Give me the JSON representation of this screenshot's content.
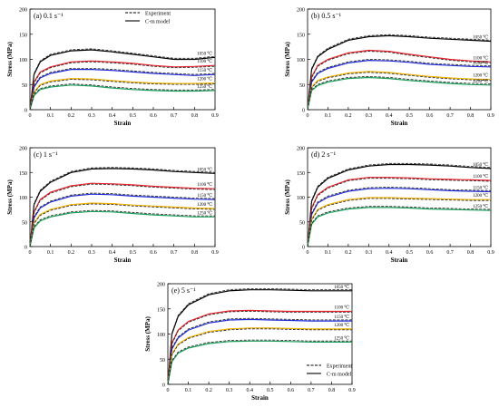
{
  "chart_data": [
    {
      "type": "line",
      "panel_label": "(a) 0.1 s⁻¹",
      "xlabel": "Strain",
      "ylabel": "Stress (MPa)",
      "xlim": [
        0,
        0.9
      ],
      "ylim": [
        0,
        200
      ],
      "xticks": [
        "0",
        "0.1",
        "0.2",
        "0.3",
        "0.4",
        "0.5",
        "0.6",
        "0.7",
        "0.8",
        "0.9"
      ],
      "yticks": [
        "0",
        "50",
        "100",
        "150",
        "200"
      ],
      "legend": {
        "show": true,
        "placement": "top-right",
        "entries": [
          "Experiment",
          "C-m model"
        ]
      },
      "x": [
        0,
        0.02,
        0.05,
        0.1,
        0.2,
        0.3,
        0.4,
        0.5,
        0.6,
        0.7,
        0.8,
        0.9
      ],
      "series": [
        {
          "name": "1050 ℃",
          "color": "#000000",
          "values": [
            0,
            70,
            95,
            108,
            117,
            119,
            115,
            110,
            105,
            100,
            100,
            104
          ]
        },
        {
          "name": "1100 ℃",
          "color": "#e8212b",
          "values": [
            0,
            55,
            75,
            85,
            95,
            97,
            95,
            92,
            88,
            85,
            86,
            88
          ]
        },
        {
          "name": "1150 ℃",
          "color": "#1f2bd6",
          "values": [
            0,
            45,
            63,
            72,
            80,
            80,
            78,
            75,
            72,
            70,
            68,
            70
          ]
        },
        {
          "name": "1200 ℃",
          "color": "#f4b400",
          "values": [
            0,
            35,
            50,
            57,
            62,
            61,
            58,
            55,
            53,
            52,
            52,
            53
          ]
        },
        {
          "name": "1250 ℃",
          "color": "#1aa05a",
          "values": [
            0,
            28,
            40,
            45,
            49,
            47,
            43,
            40,
            38,
            37,
            37,
            38
          ]
        }
      ]
    },
    {
      "type": "line",
      "panel_label": "(b) 0.5 s⁻¹",
      "xlabel": "Strain",
      "ylabel": "Stress (MPa)",
      "xlim": [
        0,
        0.9
      ],
      "ylim": [
        0,
        200
      ],
      "xticks": [
        "0",
        "0.1",
        "0.2",
        "0.3",
        "0.4",
        "0.5",
        "0.6",
        "0.7",
        "0.8",
        "0.9"
      ],
      "yticks": [
        "0",
        "50",
        "100",
        "150",
        "200"
      ],
      "x": [
        0,
        0.02,
        0.05,
        0.1,
        0.2,
        0.3,
        0.4,
        0.5,
        0.6,
        0.7,
        0.8,
        0.9
      ],
      "series": [
        {
          "name": "1050 ℃",
          "color": "#000000",
          "values": [
            0,
            80,
            105,
            120,
            138,
            145,
            147,
            145,
            142,
            140,
            138,
            136
          ]
        },
        {
          "name": "1100 ℃",
          "color": "#e8212b",
          "values": [
            0,
            65,
            88,
            100,
            113,
            118,
            116,
            110,
            105,
            100,
            97,
            95
          ]
        },
        {
          "name": "1150 ℃",
          "color": "#1f2bd6",
          "values": [
            0,
            55,
            72,
            82,
            93,
            98,
            97,
            94,
            90,
            88,
            86,
            85
          ]
        },
        {
          "name": "1200 ℃",
          "color": "#f4b400",
          "values": [
            0,
            45,
            58,
            65,
            73,
            76,
            74,
            70,
            66,
            63,
            61,
            60
          ]
        },
        {
          "name": "1250 ℃",
          "color": "#1aa05a",
          "values": [
            0,
            38,
            48,
            55,
            62,
            64,
            62,
            58,
            55,
            52,
            50,
            49
          ]
        }
      ]
    },
    {
      "type": "line",
      "panel_label": "(c) 1 s⁻¹",
      "xlabel": "Strain",
      "ylabel": "Stress (MPa)",
      "xlim": [
        0,
        0.9
      ],
      "ylim": [
        0,
        200
      ],
      "xticks": [
        "0",
        "0.1",
        "0.2",
        "0.3",
        "0.4",
        "0.5",
        "0.6",
        "0.7",
        "0.8",
        "0.9"
      ],
      "yticks": [
        "0",
        "50",
        "100",
        "150",
        "200"
      ],
      "x": [
        0,
        0.02,
        0.05,
        0.1,
        0.2,
        0.3,
        0.4,
        0.5,
        0.6,
        0.7,
        0.8,
        0.9
      ],
      "series": [
        {
          "name": "1050 ℃",
          "color": "#000000",
          "values": [
            0,
            85,
            112,
            130,
            150,
            157,
            158,
            157,
            155,
            152,
            150,
            148
          ]
        },
        {
          "name": "1100 ℃",
          "color": "#e8212b",
          "values": [
            0,
            70,
            95,
            110,
            123,
            128,
            127,
            125,
            122,
            120,
            118,
            117
          ]
        },
        {
          "name": "1150 ℃",
          "color": "#1f2bd6",
          "values": [
            0,
            58,
            78,
            90,
            102,
            106,
            105,
            102,
            100,
            98,
            96,
            95
          ]
        },
        {
          "name": "1200 ℃",
          "color": "#f4b400",
          "values": [
            0,
            48,
            65,
            75,
            85,
            88,
            87,
            84,
            82,
            80,
            78,
            77
          ]
        },
        {
          "name": "1250 ℃",
          "color": "#1aa05a",
          "values": [
            0,
            38,
            52,
            60,
            68,
            71,
            70,
            67,
            64,
            62,
            60,
            60
          ]
        }
      ]
    },
    {
      "type": "line",
      "panel_label": "(d) 2 s⁻¹",
      "xlabel": "Strain",
      "ylabel": "Stress (MPa)",
      "xlim": [
        0,
        0.9
      ],
      "ylim": [
        0,
        200
      ],
      "xticks": [
        "0",
        "0.1",
        "0.2",
        "0.3",
        "0.4",
        "0.5",
        "0.6",
        "0.7",
        "0.8",
        "0.9"
      ],
      "yticks": [
        "0",
        "50",
        "100",
        "150",
        "200"
      ],
      "x": [
        0,
        0.02,
        0.05,
        0.1,
        0.2,
        0.3,
        0.4,
        0.5,
        0.6,
        0.7,
        0.8,
        0.9
      ],
      "series": [
        {
          "name": "1050 ℃",
          "color": "#000000",
          "values": [
            0,
            92,
            120,
            138,
            155,
            163,
            166,
            166,
            165,
            163,
            160,
            158
          ]
        },
        {
          "name": "1100 ℃",
          "color": "#e8212b",
          "values": [
            0,
            78,
            105,
            120,
            135,
            140,
            140,
            139,
            137,
            136,
            135,
            134
          ]
        },
        {
          "name": "1150 ℃",
          "color": "#1f2bd6",
          "values": [
            0,
            65,
            88,
            100,
            112,
            117,
            118,
            117,
            115,
            113,
            112,
            111
          ]
        },
        {
          "name": "1200 ℃",
          "color": "#f4b400",
          "values": [
            0,
            55,
            75,
            85,
            95,
            99,
            99,
            98,
            97,
            96,
            95,
            95
          ]
        },
        {
          "name": "1250 ℃",
          "color": "#1aa05a",
          "values": [
            0,
            45,
            60,
            68,
            76,
            79,
            79,
            78,
            76,
            75,
            74,
            73
          ]
        }
      ]
    },
    {
      "type": "line",
      "panel_label": "(e) 5 s⁻¹",
      "xlabel": "Strain",
      "ylabel": "Stress (MPa)",
      "xlim": [
        0,
        0.9
      ],
      "ylim": [
        0,
        200
      ],
      "xticks": [
        "0",
        "0.1",
        "0.2",
        "0.3",
        "0.4",
        "0.5",
        "0.6",
        "0.7",
        "0.8",
        "0.9"
      ],
      "yticks": [
        "0",
        "50",
        "100",
        "150",
        "200"
      ],
      "legend": {
        "show": true,
        "placement": "bottom-right",
        "entries": [
          "Experiment",
          "C-m model"
        ]
      },
      "x": [
        0,
        0.02,
        0.05,
        0.1,
        0.2,
        0.3,
        0.4,
        0.5,
        0.6,
        0.7,
        0.8,
        0.9
      ],
      "series": [
        {
          "name": "1050 ℃",
          "color": "#000000",
          "values": [
            0,
            100,
            135,
            158,
            178,
            186,
            188,
            188,
            187,
            186,
            186,
            186
          ]
        },
        {
          "name": "1100 ℃",
          "color": "#e8212b",
          "values": [
            0,
            82,
            108,
            125,
            140,
            146,
            147,
            146,
            145,
            145,
            145,
            145
          ]
        },
        {
          "name": "1150 ℃",
          "color": "#1f2bd6",
          "values": [
            0,
            70,
            92,
            108,
            122,
            128,
            129,
            128,
            127,
            126,
            126,
            126
          ]
        },
        {
          "name": "1200 ℃",
          "color": "#f4b400",
          "values": [
            0,
            60,
            80,
            93,
            105,
            110,
            112,
            112,
            111,
            110,
            110,
            110
          ]
        },
        {
          "name": "1250 ℃",
          "color": "#1aa05a",
          "values": [
            0,
            45,
            62,
            72,
            81,
            85,
            86,
            86,
            85,
            84,
            84,
            84
          ]
        }
      ]
    }
  ]
}
